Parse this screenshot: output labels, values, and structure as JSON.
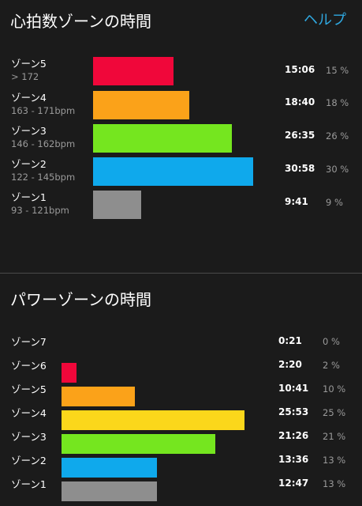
{
  "heart_rate": {
    "title": "心拍数ゾーンの時間",
    "help_label": "ヘルプ",
    "zones": [
      {
        "name": "ゾーン5",
        "range": "> 172",
        "time": "15:06",
        "percent_label": "15 %",
        "share": 0.15,
        "color": "#f0073a"
      },
      {
        "name": "ゾーン4",
        "range": "163 - 171bpm",
        "time": "18:40",
        "percent_label": "18 %",
        "share": 0.18,
        "color": "#fba219"
      },
      {
        "name": "ゾーン3",
        "range": "146 - 162bpm",
        "time": "26:35",
        "percent_label": "26 %",
        "share": 0.26,
        "color": "#75e61f"
      },
      {
        "name": "ゾーン2",
        "range": "122 - 145bpm",
        "time": "30:58",
        "percent_label": "30 %",
        "share": 0.3,
        "color": "#0fa9ec"
      },
      {
        "name": "ゾーン1",
        "range": "93 - 121bpm",
        "time": "9:41",
        "percent_label": "9 %",
        "share": 0.09,
        "color": "#8e8e8e"
      }
    ]
  },
  "power": {
    "title": "パワーゾーンの時間",
    "zones": [
      {
        "name": "ゾーン7",
        "time": "0:21",
        "percent_label": "0 %",
        "share": 0.0,
        "color": "#f0073a"
      },
      {
        "name": "ゾーン6",
        "time": "2:20",
        "percent_label": "2 %",
        "share": 0.02,
        "color": "#f0073a"
      },
      {
        "name": "ゾーン5",
        "time": "10:41",
        "percent_label": "10 %",
        "share": 0.1,
        "color": "#fba219"
      },
      {
        "name": "ゾーン4",
        "time": "25:53",
        "percent_label": "25 %",
        "share": 0.25,
        "color": "#fbd71b"
      },
      {
        "name": "ゾーン3",
        "time": "21:26",
        "percent_label": "21 %",
        "share": 0.21,
        "color": "#75e61f"
      },
      {
        "name": "ゾーン2",
        "time": "13:36",
        "percent_label": "13 %",
        "share": 0.13,
        "color": "#0fa9ec"
      },
      {
        "name": "ゾーン1",
        "time": "12:47",
        "percent_label": "13 %",
        "share": 0.13,
        "color": "#8e8e8e"
      }
    ]
  }
}
